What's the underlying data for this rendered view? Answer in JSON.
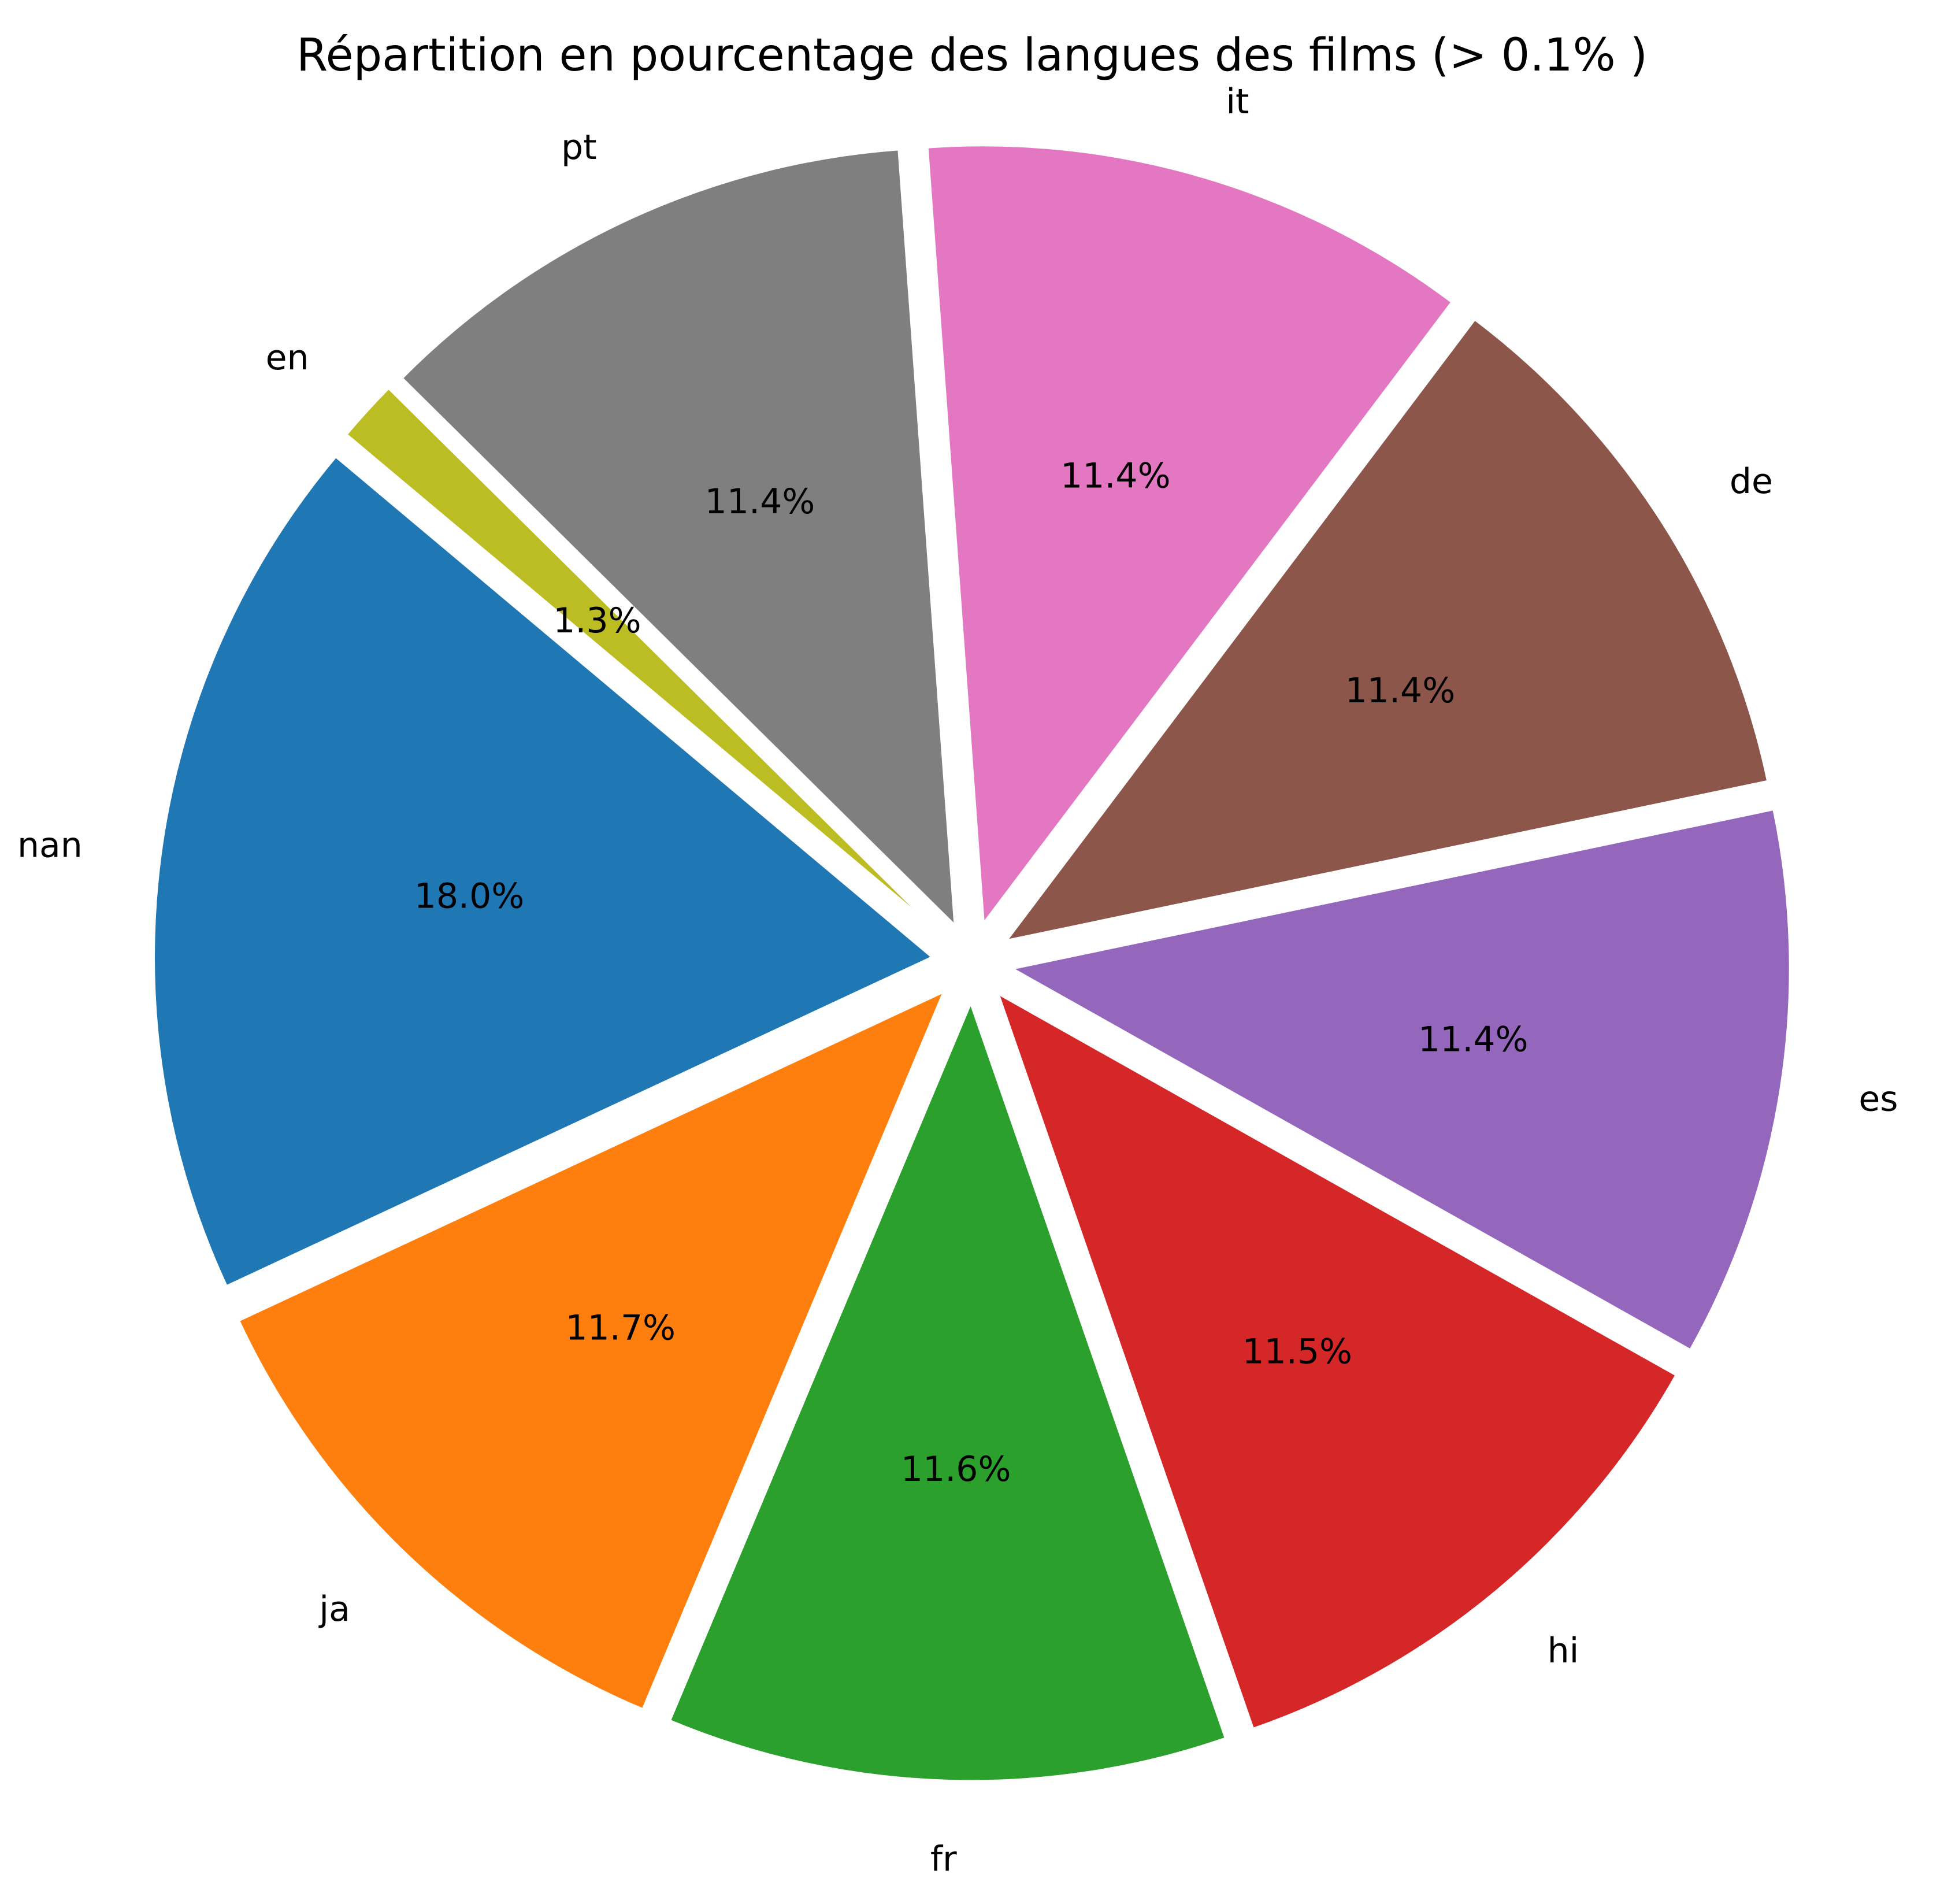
{
  "chart_data": {
    "type": "pie",
    "title": "Répartition en pourcentage des langues des films (> 0.1% )",
    "slices": [
      {
        "label": "nan",
        "value": 18.0,
        "pct_text": "18.0%",
        "color": "#1f77b4"
      },
      {
        "label": "ja",
        "value": 11.7,
        "pct_text": "11.7%",
        "color": "#ff7f0e"
      },
      {
        "label": "fr",
        "value": 11.6,
        "pct_text": "11.6%",
        "color": "#2ca02c"
      },
      {
        "label": "hi",
        "value": 11.5,
        "pct_text": "11.5%",
        "color": "#d62728"
      },
      {
        "label": "es",
        "value": 11.4,
        "pct_text": "11.4%",
        "color": "#9467bd"
      },
      {
        "label": "de",
        "value": 11.4,
        "pct_text": "11.4%",
        "color": "#8c564b"
      },
      {
        "label": "it",
        "value": 11.4,
        "pct_text": "11.4%",
        "color": "#e377c2"
      },
      {
        "label": "pt",
        "value": 11.4,
        "pct_text": "11.4%",
        "color": "#7f7f7f"
      },
      {
        "label": "en",
        "value": 1.3,
        "pct_text": "1.3%",
        "color": "#bcbd22"
      }
    ],
    "start_angle_deg": 140,
    "direction": "counterclockwise",
    "exploded": true,
    "legend": "none"
  }
}
